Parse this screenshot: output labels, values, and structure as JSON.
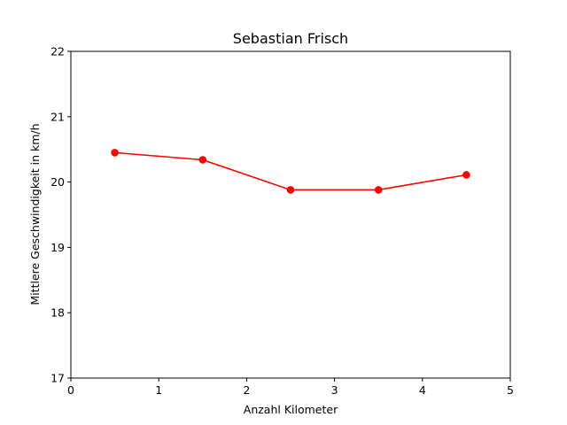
{
  "chart_data": {
    "type": "line",
    "title": "Sebastian Frisch",
    "xlabel": "Anzahl Kilometer",
    "ylabel": "Mittlere Geschwindigkeit in km/h",
    "xlim": [
      0,
      5
    ],
    "ylim": [
      17,
      22
    ],
    "xticks": [
      0,
      1,
      2,
      3,
      4,
      5
    ],
    "yticks": [
      17,
      18,
      19,
      20,
      21,
      22
    ],
    "grid": false,
    "series": [
      {
        "color": "#ff0000",
        "marker": "circle",
        "x": [
          0.5,
          1.5,
          2.5,
          3.5,
          4.5
        ],
        "y": [
          20.45,
          20.34,
          19.88,
          19.88,
          20.11
        ]
      }
    ]
  }
}
